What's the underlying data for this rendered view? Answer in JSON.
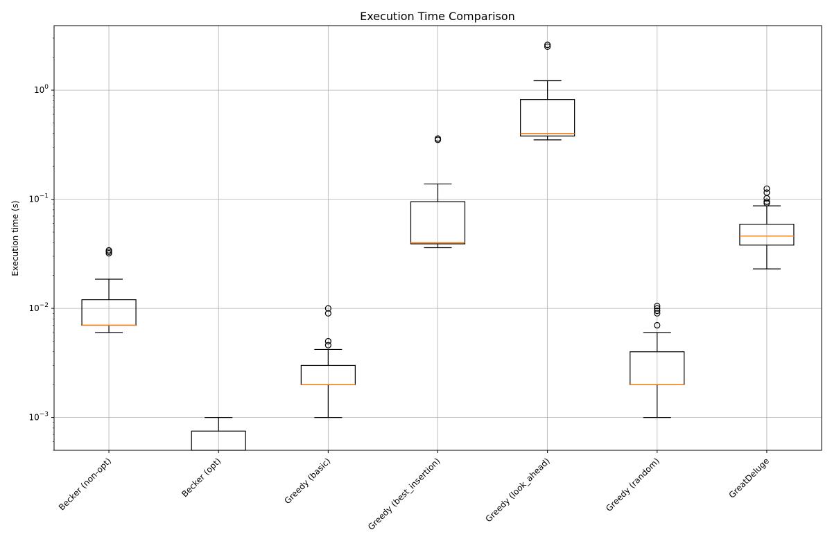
{
  "chart_data": {
    "type": "box",
    "title": "Execution Time Comparison",
    "xlabel": "",
    "ylabel": "Execution time (s)",
    "yscale": "log",
    "ylim": [
      0.0005,
      3.9
    ],
    "grid": true,
    "yticks": [
      {
        "value": 0.001,
        "mantissa": "10",
        "exponent": "−3"
      },
      {
        "value": 0.01,
        "mantissa": "10",
        "exponent": "−2"
      },
      {
        "value": 0.1,
        "mantissa": "10",
        "exponent": "−1"
      },
      {
        "value": 1,
        "mantissa": "10",
        "exponent": "0"
      }
    ],
    "categories": [
      "Becker (non-opt)",
      "Becker (opt)",
      "Greedy (basic)",
      "Greedy (best_insertion)",
      "Greedy (look_ahead)",
      "Greedy (random)",
      "GreatDeluge"
    ],
    "boxes": [
      {
        "q1": 0.007,
        "median": 0.007,
        "q3": 0.012,
        "whisker_low": 0.006,
        "whisker_high": 0.0185,
        "outliers": [
          0.032,
          0.033,
          0.034
        ]
      },
      {
        "q1": 0.0005,
        "median": 0.0005,
        "q3": 0.00075,
        "whisker_low": 0.0005,
        "whisker_high": 0.001,
        "outliers": []
      },
      {
        "q1": 0.002,
        "median": 0.002,
        "q3": 0.003,
        "whisker_low": 0.001,
        "whisker_high": 0.0042,
        "outliers": [
          0.0046,
          0.005,
          0.009,
          0.01
        ]
      },
      {
        "q1": 0.039,
        "median": 0.04,
        "q3": 0.095,
        "whisker_low": 0.036,
        "whisker_high": 0.138,
        "outliers": [
          0.35,
          0.36
        ]
      },
      {
        "q1": 0.38,
        "median": 0.4,
        "q3": 0.82,
        "whisker_low": 0.35,
        "whisker_high": 1.22,
        "outliers": [
          2.5,
          2.6
        ]
      },
      {
        "q1": 0.002,
        "median": 0.002,
        "q3": 0.004,
        "whisker_low": 0.001,
        "whisker_high": 0.006,
        "outliers": [
          0.007,
          0.009,
          0.0095,
          0.01,
          0.0105
        ]
      },
      {
        "q1": 0.038,
        "median": 0.046,
        "q3": 0.059,
        "whisker_low": 0.023,
        "whisker_high": 0.087,
        "outliers": [
          0.092,
          0.095,
          0.102,
          0.115,
          0.125
        ]
      }
    ],
    "colors": {
      "box": "#000000",
      "median": "#ff7f0e",
      "grid": "#b0b0b0"
    }
  }
}
